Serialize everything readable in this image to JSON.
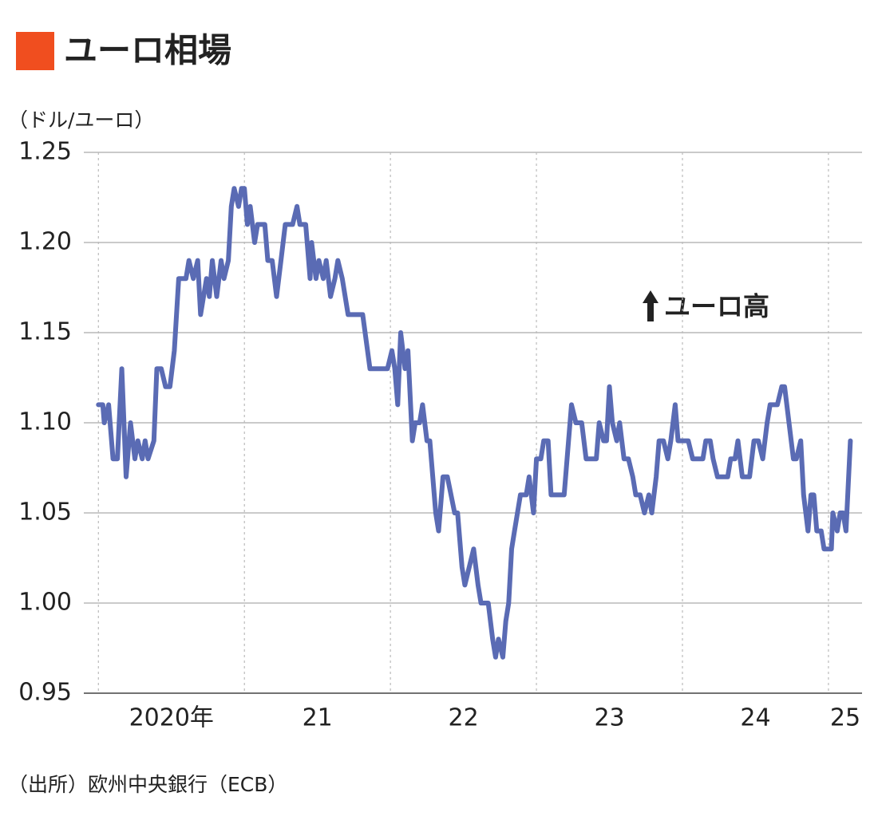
{
  "chart_data": {
    "type": "line",
    "title": "ユーロ相場",
    "y_label": "（ドル/ユーロ）",
    "annotation": "ユーロ高",
    "source": "（出所）欧州中央銀行（ECB）",
    "ylim": [
      0.95,
      1.25
    ],
    "yticks": [
      0.95,
      {
        "value": 1.0,
        "label": "1.00"
      },
      1.05,
      {
        "value": 1.1,
        "label": "1.10"
      },
      1.15,
      {
        "value": 1.2,
        "label": "1.20"
      },
      1.25
    ],
    "xlim": [
      2019.9,
      2025.23
    ],
    "xticks": [
      {
        "value": 2020,
        "label": "2020年"
      },
      {
        "value": 2021,
        "label": "21"
      },
      {
        "value": 2022,
        "label": "22"
      },
      {
        "value": 2023,
        "label": "23"
      },
      {
        "value": 2024,
        "label": "24"
      },
      {
        "value": 2025,
        "label": "25"
      }
    ],
    "grid": true,
    "series": [
      {
        "color": "#5a6bb4",
        "x": [
          2020.0,
          2020.03,
          2020.04,
          2020.07,
          2020.1,
          2020.13,
          2020.16,
          2020.19,
          2020.22,
          2020.25,
          2020.27,
          2020.3,
          2020.32,
          2020.34,
          2020.38,
          2020.4,
          2020.43,
          2020.46,
          2020.49,
          2020.52,
          2020.55,
          2020.6,
          2020.62,
          2020.65,
          2020.68,
          2020.7,
          2020.74,
          2020.76,
          2020.78,
          2020.81,
          2020.84,
          2020.86,
          2020.89,
          2020.91,
          2020.93,
          2020.96,
          2020.98,
          2021.0,
          2021.02,
          2021.04,
          2021.07,
          2021.09,
          2021.14,
          2021.16,
          2021.19,
          2021.22,
          2021.25,
          2021.28,
          2021.33,
          2021.36,
          2021.38,
          2021.42,
          2021.45,
          2021.46,
          2021.49,
          2021.51,
          2021.54,
          2021.56,
          2021.59,
          2021.62,
          2021.64,
          2021.67,
          2021.71,
          2021.81,
          2021.86,
          2021.98,
          2022.01,
          2022.03,
          2022.05,
          2022.07,
          2022.1,
          2022.12,
          2022.15,
          2022.17,
          2022.2,
          2022.22,
          2022.25,
          2022.27,
          2022.29,
          2022.31,
          2022.33,
          2022.36,
          2022.39,
          2022.44,
          2022.46,
          2022.49,
          2022.51,
          2022.54,
          2022.57,
          2022.6,
          2022.62,
          2022.67,
          2022.7,
          2022.72,
          2022.74,
          2022.77,
          2022.79,
          2022.81,
          2022.83,
          2022.85,
          2022.89,
          2022.93,
          2022.95,
          2022.98,
          2023.0,
          2023.03,
          2023.05,
          2023.08,
          2023.1,
          2023.15,
          2023.19,
          2023.22,
          2023.24,
          2023.27,
          2023.31,
          2023.34,
          2023.41,
          2023.43,
          2023.46,
          2023.48,
          2023.5,
          2023.52,
          2023.55,
          2023.57,
          2023.6,
          2023.63,
          2023.66,
          2023.68,
          2023.71,
          2023.74,
          2023.77,
          2023.79,
          2023.82,
          2023.84,
          2023.87,
          2023.9,
          2023.92,
          2023.95,
          2023.97,
          2024.01,
          2024.04,
          2024.07,
          2024.1,
          2024.14,
          2024.16,
          2024.19,
          2024.21,
          2024.24,
          2024.31,
          2024.33,
          2024.36,
          2024.38,
          2024.41,
          2024.46,
          2024.49,
          2024.52,
          2024.55,
          2024.58,
          2024.6,
          2024.65,
          2024.68,
          2024.7,
          2024.73,
          2024.76,
          2024.78,
          2024.81,
          2024.83,
          2024.86,
          2024.88,
          2024.9,
          2024.92,
          2024.95,
          2024.97,
          2025.02,
          2025.03,
          2025.06,
          2025.08,
          2025.1,
          2025.12,
          2025.15
        ],
        "values": [
          1.11,
          1.11,
          1.1,
          1.11,
          1.08,
          1.08,
          1.13,
          1.07,
          1.1,
          1.08,
          1.09,
          1.08,
          1.09,
          1.08,
          1.09,
          1.13,
          1.13,
          1.12,
          1.12,
          1.14,
          1.18,
          1.18,
          1.19,
          1.18,
          1.19,
          1.16,
          1.18,
          1.17,
          1.19,
          1.17,
          1.19,
          1.18,
          1.19,
          1.22,
          1.23,
          1.22,
          1.23,
          1.23,
          1.21,
          1.22,
          1.2,
          1.21,
          1.21,
          1.19,
          1.19,
          1.17,
          1.19,
          1.21,
          1.21,
          1.22,
          1.21,
          1.21,
          1.18,
          1.2,
          1.18,
          1.19,
          1.18,
          1.19,
          1.17,
          1.18,
          1.19,
          1.18,
          1.16,
          1.16,
          1.13,
          1.13,
          1.14,
          1.13,
          1.11,
          1.15,
          1.13,
          1.14,
          1.09,
          1.1,
          1.1,
          1.11,
          1.09,
          1.09,
          1.07,
          1.05,
          1.04,
          1.07,
          1.07,
          1.05,
          1.05,
          1.02,
          1.01,
          1.02,
          1.03,
          1.01,
          1.0,
          1.0,
          0.98,
          0.97,
          0.98,
          0.97,
          0.99,
          1.0,
          1.03,
          1.04,
          1.06,
          1.06,
          1.07,
          1.05,
          1.08,
          1.08,
          1.09,
          1.09,
          1.06,
          1.06,
          1.06,
          1.09,
          1.11,
          1.1,
          1.1,
          1.08,
          1.08,
          1.1,
          1.09,
          1.09,
          1.12,
          1.1,
          1.09,
          1.1,
          1.08,
          1.08,
          1.07,
          1.06,
          1.06,
          1.05,
          1.06,
          1.05,
          1.07,
          1.09,
          1.09,
          1.08,
          1.09,
          1.11,
          1.09,
          1.09,
          1.09,
          1.08,
          1.08,
          1.08,
          1.09,
          1.09,
          1.08,
          1.07,
          1.07,
          1.08,
          1.08,
          1.09,
          1.07,
          1.07,
          1.09,
          1.09,
          1.08,
          1.1,
          1.11,
          1.11,
          1.12,
          1.12,
          1.1,
          1.08,
          1.08,
          1.09,
          1.06,
          1.04,
          1.06,
          1.06,
          1.04,
          1.04,
          1.03,
          1.03,
          1.05,
          1.04,
          1.05,
          1.05,
          1.04,
          1.09
        ]
      }
    ]
  }
}
